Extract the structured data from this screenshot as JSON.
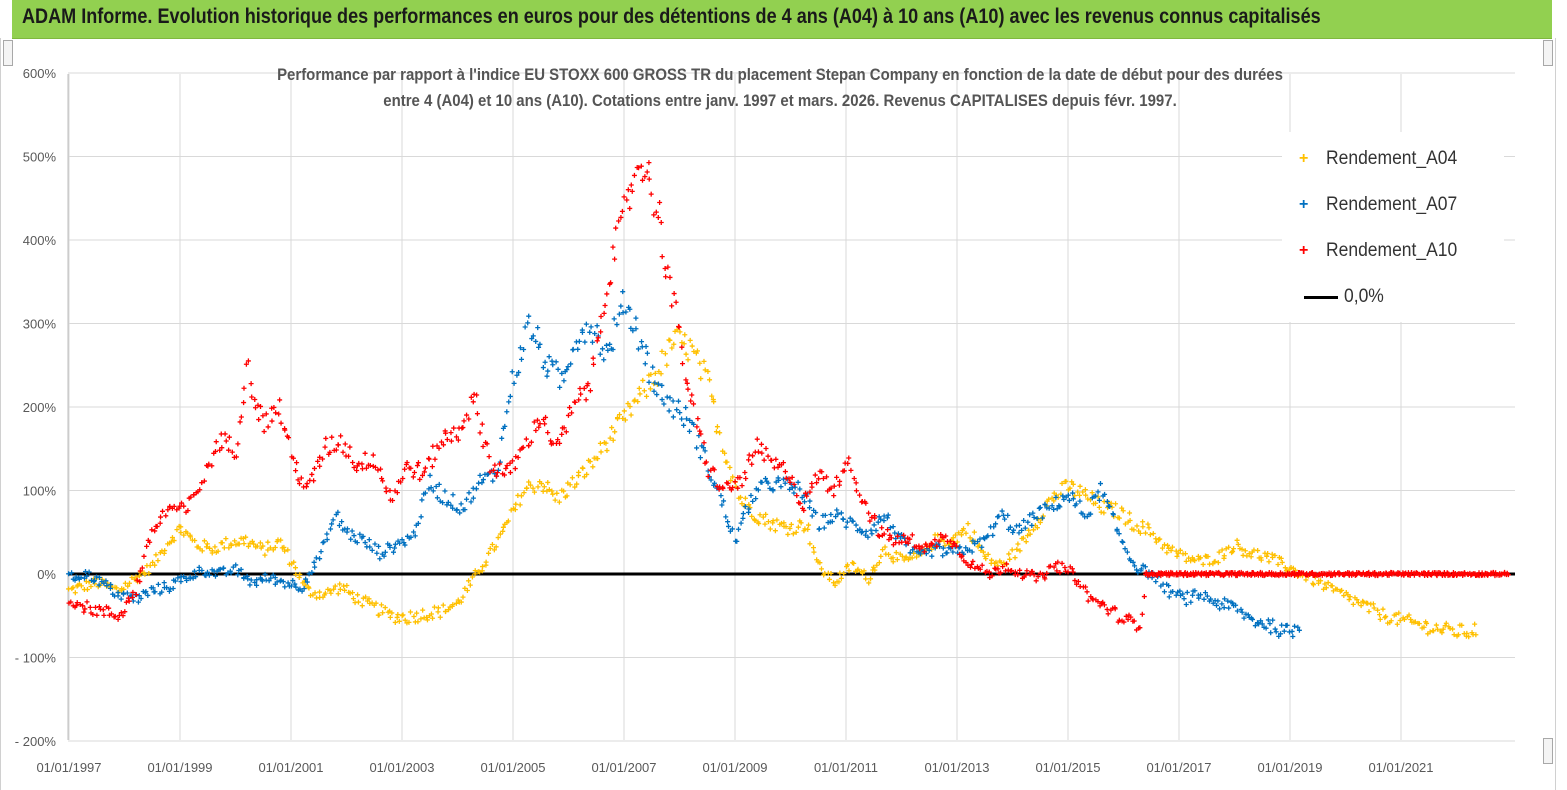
{
  "page_title": "ADAM Informe. Evolution historique des performances en euros pour des détentions de 4 ans (A04) à 10 ans (A10) avec les revenus connus capitalisés",
  "chart_title_line1": "Performance par rapport à l'indice EU STOXX 600 GROSS TR  du placement Stepan Company en fonction de la date de début pour des durées",
  "chart_title_line2": "entre 4 (A04) et 10 ans (A10). Cotations entre janv. 1997 et mars. 2026. Revenus CAPITALISES depuis févr. 1997.",
  "colors": {
    "a04": "#ffc000",
    "a07": "#0070c0",
    "a10": "#ff0000",
    "zero": "#000000",
    "banner": "#92d050",
    "grid": "#d9d9d9"
  },
  "chart_data": {
    "type": "scatter",
    "title": "Performance par rapport à l'indice EU STOXX 600 GROSS TR du placement Stepan Company",
    "xlabel": "",
    "ylabel": "",
    "x_range": [
      1997.0,
      2023.0
    ],
    "ylim": [
      -200,
      600
    ],
    "y_ticks": [
      600,
      500,
      400,
      300,
      200,
      100,
      0,
      -100,
      -200
    ],
    "y_tick_labels": [
      "600%",
      "500%",
      "400%",
      "300%",
      "200%",
      "100%",
      "0%",
      "- 100%",
      "- 200%"
    ],
    "x_ticks": [
      1997,
      1999,
      2001,
      2003,
      2005,
      2007,
      2009,
      2011,
      2013,
      2015,
      2017,
      2019,
      2021
    ],
    "x_tick_labels": [
      "01/01/1997",
      "01/01/1999",
      "01/01/2001",
      "01/01/2003",
      "01/01/2005",
      "01/01/2007",
      "01/01/2009",
      "01/01/2011",
      "01/01/2013",
      "01/01/2015",
      "01/01/2017",
      "01/01/2019",
      "01/01/2021"
    ],
    "legend": "right",
    "series": [
      {
        "name": "Rendement_A04",
        "color": "#ffc000",
        "marker": "plus",
        "points": [
          [
            1997.0,
            -20
          ],
          [
            1997.5,
            -10
          ],
          [
            1997.9,
            -20
          ],
          [
            1998.2,
            -5
          ],
          [
            1998.5,
            10
          ],
          [
            1998.8,
            40
          ],
          [
            1999.0,
            55
          ],
          [
            1999.3,
            35
          ],
          [
            1999.6,
            30
          ],
          [
            1999.9,
            38
          ],
          [
            2000.2,
            40
          ],
          [
            2000.5,
            28
          ],
          [
            2000.8,
            38
          ],
          [
            2001.0,
            15
          ],
          [
            2001.3,
            -20
          ],
          [
            2001.6,
            -25
          ],
          [
            2001.9,
            -15
          ],
          [
            2002.2,
            -30
          ],
          [
            2002.5,
            -40
          ],
          [
            2002.8,
            -50
          ],
          [
            2003.1,
            -52
          ],
          [
            2003.4,
            -48
          ],
          [
            2003.7,
            -45
          ],
          [
            2004.0,
            -35
          ],
          [
            2004.3,
            -5
          ],
          [
            2004.6,
            25
          ],
          [
            2004.9,
            60
          ],
          [
            2005.2,
            100
          ],
          [
            2005.5,
            110
          ],
          [
            2005.8,
            90
          ],
          [
            2006.1,
            110
          ],
          [
            2006.4,
            130
          ],
          [
            2006.7,
            160
          ],
          [
            2007.0,
            185
          ],
          [
            2007.3,
            215
          ],
          [
            2007.6,
            240
          ],
          [
            2007.9,
            280
          ],
          [
            2008.2,
            270
          ],
          [
            2008.5,
            230
          ],
          [
            2008.8,
            150
          ],
          [
            2009.1,
            90
          ],
          [
            2009.4,
            70
          ],
          [
            2009.7,
            60
          ],
          [
            2010.0,
            55
          ],
          [
            2010.3,
            60
          ],
          [
            2010.5,
            10
          ],
          [
            2010.8,
            -10
          ],
          [
            2011.1,
            10
          ],
          [
            2011.4,
            -5
          ],
          [
            2011.7,
            30
          ],
          [
            2012.0,
            15
          ],
          [
            2012.3,
            20
          ],
          [
            2012.6,
            40
          ],
          [
            2012.9,
            40
          ],
          [
            2013.2,
            55
          ],
          [
            2013.5,
            20
          ],
          [
            2013.8,
            10
          ],
          [
            2014.1,
            30
          ],
          [
            2014.4,
            60
          ],
          [
            2014.7,
            90
          ],
          [
            2015.0,
            105
          ],
          [
            2015.3,
            95
          ],
          [
            2015.6,
            80
          ],
          [
            2015.9,
            75
          ],
          [
            2016.2,
            60
          ],
          [
            2016.5,
            50
          ],
          [
            2016.8,
            30
          ],
          [
            2017.1,
            20
          ],
          [
            2017.4,
            15
          ],
          [
            2017.7,
            20
          ],
          [
            2018.0,
            35
          ],
          [
            2018.3,
            25
          ],
          [
            2018.6,
            20
          ],
          [
            2018.9,
            10
          ],
          [
            2019.2,
            0
          ],
          [
            2019.5,
            -10
          ],
          [
            2019.8,
            -20
          ],
          [
            2020.1,
            -30
          ],
          [
            2020.4,
            -40
          ],
          [
            2020.7,
            -50
          ],
          [
            2021.0,
            -55
          ],
          [
            2021.3,
            -60
          ],
          [
            2021.6,
            -65
          ],
          [
            2021.9,
            -68
          ],
          [
            2022.2,
            -70
          ],
          [
            2022.4,
            -65
          ]
        ]
      },
      {
        "name": "Rendement_A07",
        "color": "#0070c0",
        "marker": "plus",
        "points": [
          [
            1997.0,
            -5
          ],
          [
            1997.3,
            0
          ],
          [
            1997.6,
            -10
          ],
          [
            1997.9,
            -25
          ],
          [
            1998.2,
            -30
          ],
          [
            1998.5,
            -20
          ],
          [
            1998.8,
            -15
          ],
          [
            1999.1,
            -5
          ],
          [
            1999.4,
            5
          ],
          [
            1999.7,
            0
          ],
          [
            2000.0,
            5
          ],
          [
            2000.3,
            -10
          ],
          [
            2000.6,
            -5
          ],
          [
            2000.9,
            -10
          ],
          [
            2001.2,
            -15
          ],
          [
            2001.5,
            20
          ],
          [
            2001.8,
            70
          ],
          [
            2002.0,
            50
          ],
          [
            2002.3,
            40
          ],
          [
            2002.6,
            25
          ],
          [
            2002.9,
            35
          ],
          [
            2003.2,
            45
          ],
          [
            2003.5,
            110
          ],
          [
            2003.8,
            90
          ],
          [
            2004.1,
            80
          ],
          [
            2004.4,
            110
          ],
          [
            2004.7,
            120
          ],
          [
            2005.0,
            230
          ],
          [
            2005.3,
            300
          ],
          [
            2005.6,
            250
          ],
          [
            2005.9,
            230
          ],
          [
            2006.1,
            280
          ],
          [
            2006.4,
            300
          ],
          [
            2006.7,
            260
          ],
          [
            2007.0,
            330
          ],
          [
            2007.3,
            280
          ],
          [
            2007.6,
            220
          ],
          [
            2007.9,
            200
          ],
          [
            2008.2,
            180
          ],
          [
            2008.5,
            130
          ],
          [
            2008.8,
            80
          ],
          [
            2009.0,
            40
          ],
          [
            2009.3,
            90
          ],
          [
            2009.6,
            110
          ],
          [
            2009.9,
            105
          ],
          [
            2010.2,
            100
          ],
          [
            2010.5,
            60
          ],
          [
            2010.8,
            70
          ],
          [
            2011.1,
            60
          ],
          [
            2011.4,
            50
          ],
          [
            2011.7,
            70
          ],
          [
            2012.0,
            40
          ],
          [
            2012.3,
            20
          ],
          [
            2012.6,
            30
          ],
          [
            2012.9,
            25
          ],
          [
            2013.2,
            30
          ],
          [
            2013.5,
            40
          ],
          [
            2013.8,
            70
          ],
          [
            2014.1,
            50
          ],
          [
            2014.4,
            70
          ],
          [
            2014.7,
            80
          ],
          [
            2015.0,
            95
          ],
          [
            2015.3,
            70
          ],
          [
            2015.6,
            100
          ],
          [
            2015.9,
            50
          ],
          [
            2016.2,
            10
          ],
          [
            2016.5,
            0
          ],
          [
            2016.8,
            -20
          ],
          [
            2017.1,
            -30
          ],
          [
            2017.4,
            -25
          ],
          [
            2017.7,
            -35
          ],
          [
            2018.0,
            -40
          ],
          [
            2018.3,
            -55
          ],
          [
            2018.6,
            -60
          ],
          [
            2018.9,
            -70
          ],
          [
            2019.2,
            -65
          ]
        ]
      },
      {
        "name": "Rendement_A10",
        "color": "#ff0000",
        "marker": "plus",
        "points": [
          [
            1997.0,
            -30
          ],
          [
            1997.3,
            -40
          ],
          [
            1997.6,
            -45
          ],
          [
            1997.9,
            -50
          ],
          [
            1998.2,
            -20
          ],
          [
            1998.5,
            50
          ],
          [
            1998.8,
            80
          ],
          [
            1999.1,
            75
          ],
          [
            1999.4,
            110
          ],
          [
            1999.7,
            160
          ],
          [
            2000.0,
            150
          ],
          [
            2000.2,
            250
          ],
          [
            2000.5,
            180
          ],
          [
            2000.8,
            200
          ],
          [
            2001.0,
            140
          ],
          [
            2001.3,
            100
          ],
          [
            2001.6,
            150
          ],
          [
            2001.9,
            160
          ],
          [
            2002.2,
            130
          ],
          [
            2002.5,
            140
          ],
          [
            2002.8,
            90
          ],
          [
            2003.1,
            130
          ],
          [
            2003.4,
            120
          ],
          [
            2003.7,
            160
          ],
          [
            2004.0,
            170
          ],
          [
            2004.3,
            210
          ],
          [
            2004.6,
            130
          ],
          [
            2004.9,
            120
          ],
          [
            2005.2,
            150
          ],
          [
            2005.5,
            190
          ],
          [
            2005.8,
            150
          ],
          [
            2006.1,
            200
          ],
          [
            2006.4,
            230
          ],
          [
            2006.7,
            350
          ],
          [
            2007.0,
            430
          ],
          [
            2007.3,
            500
          ],
          [
            2007.6,
            440
          ],
          [
            2007.9,
            320
          ],
          [
            2008.2,
            210
          ],
          [
            2008.5,
            130
          ],
          [
            2008.8,
            100
          ],
          [
            2009.1,
            110
          ],
          [
            2009.4,
            150
          ],
          [
            2009.7,
            130
          ],
          [
            2010.0,
            120
          ],
          [
            2010.2,
            80
          ],
          [
            2010.5,
            120
          ],
          [
            2010.8,
            100
          ],
          [
            2011.0,
            140
          ],
          [
            2011.3,
            90
          ],
          [
            2011.6,
            50
          ],
          [
            2011.9,
            40
          ],
          [
            2012.2,
            40
          ],
          [
            2012.5,
            30
          ],
          [
            2012.8,
            50
          ],
          [
            2013.0,
            30
          ],
          [
            2013.3,
            10
          ],
          [
            2013.6,
            0
          ],
          [
            2013.9,
            10
          ],
          [
            2014.2,
            0
          ],
          [
            2014.5,
            -5
          ],
          [
            2014.8,
            10
          ],
          [
            2015.1,
            0
          ],
          [
            2015.4,
            -30
          ],
          [
            2015.7,
            -40
          ],
          [
            2016.0,
            -55
          ],
          [
            2016.3,
            -60
          ],
          [
            2016.4,
            0
          ],
          [
            2017.0,
            0
          ],
          [
            2018.0,
            0
          ],
          [
            2019.0,
            0
          ],
          [
            2020.0,
            0
          ],
          [
            2021.0,
            0
          ],
          [
            2022.0,
            0
          ],
          [
            2022.95,
            0
          ]
        ]
      }
    ],
    "reference_line": {
      "name": "0,0%",
      "y": 0,
      "color": "#000000"
    }
  },
  "legend_items": [
    {
      "label": "Rendement_A04"
    },
    {
      "label": "Rendement_A07"
    },
    {
      "label": "Rendement_A10"
    },
    {
      "label": "0,0%"
    }
  ]
}
